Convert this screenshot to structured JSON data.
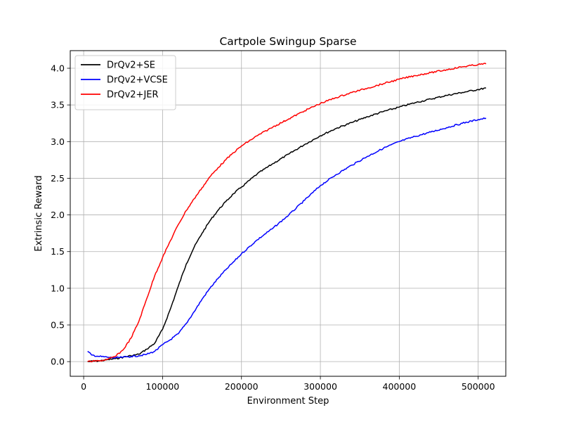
{
  "chart_data": {
    "type": "line",
    "title": "Cartpole Swingup Sparse",
    "xlabel": "Environment Step",
    "ylabel": "Extrinsic Reward",
    "xlim": [
      -17000,
      535000
    ],
    "ylim": [
      -0.2,
      4.24
    ],
    "xticks": [
      0,
      100000,
      200000,
      300000,
      400000,
      500000
    ],
    "xtick_labels": [
      "0",
      "100000",
      "200000",
      "300000",
      "400000",
      "500000"
    ],
    "yticks": [
      0.0,
      0.5,
      1.0,
      1.5,
      2.0,
      2.5,
      3.0,
      3.5,
      4.0
    ],
    "ytick_labels": [
      "0.0",
      "0.5",
      "1.0",
      "1.5",
      "2.0",
      "2.5",
      "3.0",
      "3.5",
      "4.0"
    ],
    "grid": true,
    "legend_position": "upper-left",
    "series": [
      {
        "name": "DrQv2+SE",
        "color": "#000000",
        "x": [
          5000,
          20000,
          40000,
          60000,
          70000,
          80000,
          90000,
          100000,
          110000,
          120000,
          130000,
          140000,
          150000,
          160000,
          170000,
          180000,
          190000,
          200000,
          220000,
          240000,
          260000,
          280000,
          300000,
          320000,
          340000,
          360000,
          380000,
          400000,
          420000,
          440000,
          460000,
          480000,
          500000,
          510000
        ],
        "y": [
          0.0,
          0.01,
          0.04,
          0.08,
          0.1,
          0.17,
          0.25,
          0.44,
          0.72,
          1.03,
          1.33,
          1.56,
          1.75,
          1.92,
          2.06,
          2.18,
          2.29,
          2.38,
          2.56,
          2.7,
          2.83,
          2.96,
          3.08,
          3.18,
          3.26,
          3.34,
          3.41,
          3.47,
          3.53,
          3.58,
          3.63,
          3.67,
          3.71,
          3.73
        ]
      },
      {
        "name": "DrQv2+VCSE",
        "color": "#0000ff",
        "x": [
          5000,
          10000,
          20000,
          30000,
          40000,
          50000,
          60000,
          70000,
          80000,
          90000,
          100000,
          110000,
          120000,
          130000,
          140000,
          150000,
          160000,
          170000,
          180000,
          190000,
          200000,
          220000,
          240000,
          260000,
          280000,
          300000,
          320000,
          340000,
          360000,
          380000,
          400000,
          420000,
          440000,
          460000,
          480000,
          500000,
          510000
        ],
        "y": [
          0.14,
          0.09,
          0.07,
          0.06,
          0.05,
          0.06,
          0.07,
          0.08,
          0.1,
          0.14,
          0.23,
          0.3,
          0.38,
          0.52,
          0.68,
          0.85,
          1.0,
          1.13,
          1.25,
          1.36,
          1.47,
          1.66,
          1.82,
          2.0,
          2.2,
          2.4,
          2.55,
          2.68,
          2.8,
          2.91,
          3.0,
          3.07,
          3.13,
          3.19,
          3.25,
          3.3,
          3.32
        ]
      },
      {
        "name": "DrQv2+JER",
        "color": "#ff0000",
        "x": [
          5000,
          20000,
          30000,
          40000,
          50000,
          60000,
          70000,
          80000,
          90000,
          100000,
          110000,
          120000,
          130000,
          140000,
          150000,
          160000,
          170000,
          180000,
          190000,
          200000,
          220000,
          240000,
          260000,
          280000,
          300000,
          320000,
          340000,
          360000,
          380000,
          400000,
          420000,
          440000,
          460000,
          480000,
          500000,
          510000
        ],
        "y": [
          0.0,
          0.01,
          0.03,
          0.07,
          0.16,
          0.32,
          0.55,
          0.86,
          1.17,
          1.42,
          1.65,
          1.87,
          2.06,
          2.22,
          2.37,
          2.52,
          2.64,
          2.75,
          2.85,
          2.94,
          3.08,
          3.2,
          3.31,
          3.42,
          3.52,
          3.6,
          3.67,
          3.73,
          3.79,
          3.85,
          3.9,
          3.94,
          3.98,
          4.02,
          4.05,
          4.06
        ]
      }
    ]
  }
}
